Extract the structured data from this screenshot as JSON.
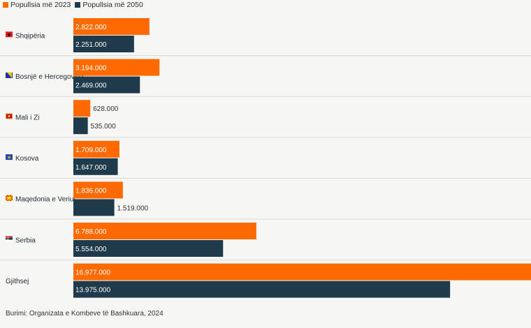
{
  "legend": {
    "series_2023": "Popullsia më 2023",
    "series_2050": "Popullsia më 2050"
  },
  "colors": {
    "series_2023": "#ff6a00",
    "series_2050": "#1f3a4a",
    "separator": "#d9d9d9",
    "label_inside": "#ffffff",
    "label_outside": "#333333"
  },
  "source": "Burimi: Organizata e Kombeve të Bashkuara, 2024",
  "chart_data": {
    "type": "bar",
    "orientation": "horizontal",
    "categories": [
      "Shqipëria",
      "Bosnjë e Hercegovina",
      "Mali i Zi",
      "Kosova",
      "Maqedonia e Veriut",
      "Serbia",
      "Gjithsej"
    ],
    "flags": [
      "albania-flag-icon",
      "bosnia-flag-icon",
      "montenegro-flag-icon",
      "kosovo-flag-icon",
      "north-macedonia-flag-icon",
      "serbia-flag-icon",
      ""
    ],
    "series": [
      {
        "name": "Popullsia më 2023",
        "values": [
          2822000,
          3194000,
          628000,
          1709000,
          1836000,
          6788000,
          16977000
        ],
        "labels": [
          "2.822.000",
          "3.194.000",
          "628.000",
          "1.709.000",
          "1.836.000",
          "6.788.000",
          "16.977.000"
        ]
      },
      {
        "name": "Popullsia më 2050",
        "values": [
          2251000,
          2469000,
          535000,
          1647000,
          1519000,
          5554000,
          13975000
        ],
        "labels": [
          "2.251.000",
          "2.469.000",
          "535.000",
          "1.647.000",
          "1.519.000",
          "5.554.000",
          "13.975.000"
        ]
      }
    ],
    "xlim": [
      0,
      16977000
    ],
    "grid": false,
    "legend_position": "top-left"
  }
}
